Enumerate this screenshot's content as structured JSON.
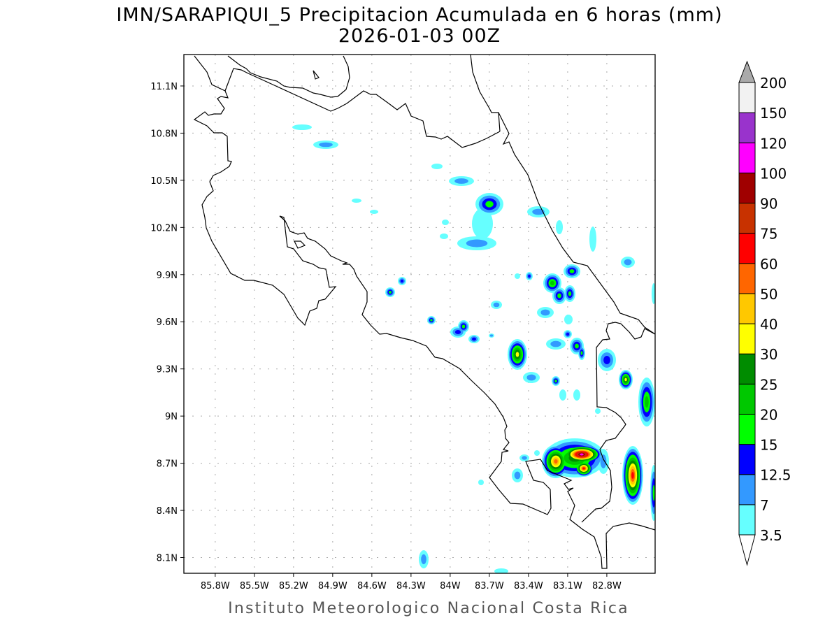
{
  "title": {
    "line1": "IMN/SARAPIQUI_5 Precipitacion Acumulada en 6 horas (mm)",
    "line2": "2026-01-03 00Z"
  },
  "footer": "Instituto Meteorologico Nacional Costa Rica",
  "map": {
    "lon_range": [
      -86.04,
      -82.43
    ],
    "lat_range": [
      8.0,
      11.3
    ],
    "lon_ticks": [
      {
        "value": -85.8,
        "label": "85.8W"
      },
      {
        "value": -85.5,
        "label": "85.5W"
      },
      {
        "value": -85.2,
        "label": "85.2W"
      },
      {
        "value": -84.9,
        "label": "84.9W"
      },
      {
        "value": -84.6,
        "label": "84.6W"
      },
      {
        "value": -84.3,
        "label": "84.3W"
      },
      {
        "value": -84.0,
        "label": "84W"
      },
      {
        "value": -83.7,
        "label": "83.7W"
      },
      {
        "value": -83.4,
        "label": "83.4W"
      },
      {
        "value": -83.1,
        "label": "83.1W"
      },
      {
        "value": -82.8,
        "label": "82.8W"
      }
    ],
    "lat_ticks": [
      {
        "value": 8.1,
        "label": "8.1N"
      },
      {
        "value": 8.4,
        "label": "8.4N"
      },
      {
        "value": 8.7,
        "label": "8.7N"
      },
      {
        "value": 9.0,
        "label": "9N"
      },
      {
        "value": 9.3,
        "label": "9.3N"
      },
      {
        "value": 9.6,
        "label": "9.6N"
      },
      {
        "value": 9.9,
        "label": "9.9N"
      },
      {
        "value": 10.2,
        "label": "10.2N"
      },
      {
        "value": 10.5,
        "label": "10.5N"
      },
      {
        "value": 10.8,
        "label": "10.8N"
      },
      {
        "value": 11.1,
        "label": "11.1N"
      }
    ],
    "grid": true
  },
  "colorbar": {
    "labels": [
      "3.5",
      "7",
      "12.5",
      "15",
      "20",
      "25",
      "30",
      "40",
      "50",
      "60",
      "75",
      "90",
      "100",
      "120",
      "150",
      "200"
    ],
    "colors": [
      "#66ffff",
      "#3399ff",
      "#0000ff",
      "#00ff00",
      "#00c800",
      "#008c00",
      "#ffff00",
      "#ffc800",
      "#ff6600",
      "#ff0000",
      "#c83200",
      "#a00000",
      "#ff00ff",
      "#9933cc",
      "#f2f2f2"
    ],
    "over_color": "#aaaaaa",
    "under_color": "#ffffff"
  }
}
